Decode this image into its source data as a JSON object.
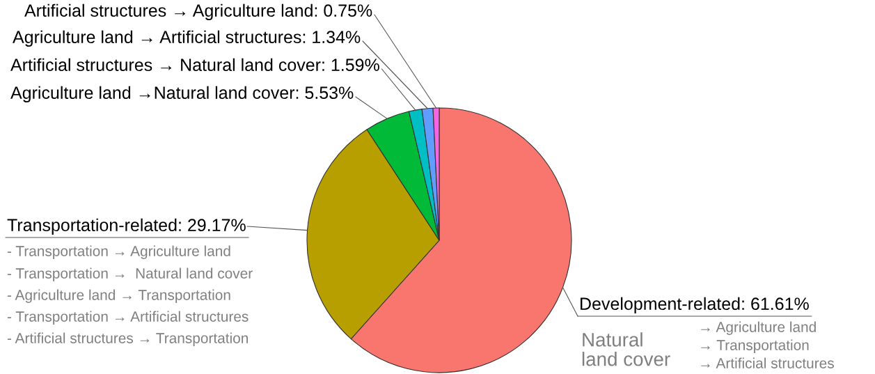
{
  "chart_data": {
    "type": "pie",
    "categories": [
      "Development-related",
      "Transportation-related",
      "Agriculture land →Natural land cover",
      "Artificial structures → Natural land cover",
      "Agriculture land → Artificial structures",
      "Artificial structures → Agriculture land"
    ],
    "values": [
      61.61,
      29.17,
      5.53,
      1.59,
      1.34,
      0.75
    ],
    "value_labels": [
      "61.61%",
      "29.17%",
      "5.53%",
      "1.59%",
      "1.34%",
      "0.75%"
    ],
    "colors": [
      "#f8766d",
      "#b79f00",
      "#00ba38",
      "#00bfc4",
      "#619cff",
      "#f564e3"
    ],
    "annotations": [
      "- Transportation → Agriculture land",
      "- Transportation →  Natural land cover",
      "- Agriculture land → Transportation",
      "- Transportation → Artificial structures",
      "- Artificial structures → Transportation",
      "Natural\nland cover",
      "→ Agriculture land",
      "→ Transportation",
      "→ Artificial structures"
    ]
  }
}
